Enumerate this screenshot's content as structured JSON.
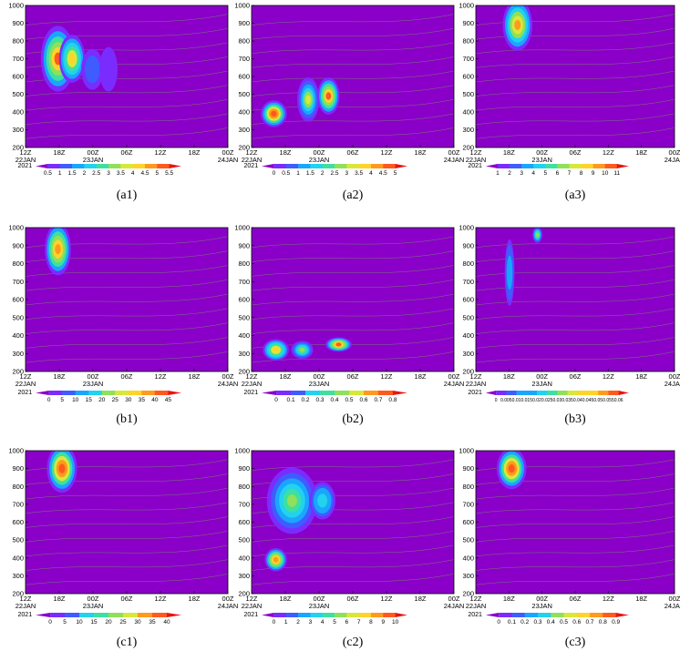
{
  "chart_data": {
    "type": "heatmap",
    "description_colors": {
      "colormap": [
        "#8a00c8",
        "#7a2cff",
        "#3f5cff",
        "#1aa6ff",
        "#22d2ee",
        "#3ee0a0",
        "#8fe05a",
        "#d8e83a",
        "#ffd42a",
        "#ff9a1e",
        "#ff5a1e",
        "#e81414"
      ],
      "contour_line": "#7a7a7a",
      "frame": "#000000"
    },
    "shared_axes": {
      "x_tick_labels_top": [
        "12Z",
        "18Z",
        "00Z",
        "06Z",
        "12Z",
        "18Z",
        "00Z"
      ],
      "x_tick_labels_bottom": [
        "22JAN",
        "",
        "23JAN",
        "",
        "",
        "",
        "24JAN"
      ],
      "y_tick_labels": [
        "200",
        "300",
        "400",
        "500",
        "600",
        "700",
        "800",
        "900",
        "1000"
      ],
      "ylim": [
        1000,
        200
      ],
      "colorbar_year": "2021"
    },
    "panels": [
      {
        "id": "a1",
        "label": "(a1)",
        "colorbar": [
          "0.5",
          "1",
          "1.5",
          "2",
          "2.5",
          "3",
          "3.5",
          "4",
          "4.5",
          "5",
          "5.5"
        ],
        "blobs": [
          {
            "x": 0.16,
            "y": 700,
            "w": 0.08,
            "h": 180,
            "v": 0.9
          },
          {
            "x": 0.23,
            "y": 700,
            "w": 0.06,
            "h": 130,
            "v": 0.75
          },
          {
            "x": 0.33,
            "y": 640,
            "w": 0.05,
            "h": 110,
            "v": 0.2
          },
          {
            "x": 0.41,
            "y": 640,
            "w": 0.04,
            "h": 120,
            "v": 0.1
          }
        ]
      },
      {
        "id": "a2",
        "label": "(a2)",
        "colorbar": [
          "0",
          "0.5",
          "1",
          "1.5",
          "2",
          "2.5",
          "3",
          "3.5",
          "4",
          "4.5",
          "5"
        ],
        "blobs": [
          {
            "x": 0.11,
            "y": 390,
            "w": 0.06,
            "h": 70,
            "v": 0.95
          },
          {
            "x": 0.28,
            "y": 470,
            "w": 0.05,
            "h": 120,
            "v": 0.6
          },
          {
            "x": 0.38,
            "y": 490,
            "w": 0.05,
            "h": 100,
            "v": 0.9
          }
        ]
      },
      {
        "id": "a3",
        "label": "(a3)",
        "colorbar": [
          "1",
          "2",
          "3",
          "4",
          "5",
          "6",
          "7",
          "8",
          "9",
          "10",
          "11"
        ],
        "blobs": [
          {
            "x": 0.21,
            "y": 890,
            "w": 0.07,
            "h": 140,
            "v": 0.8
          }
        ]
      },
      {
        "id": "b1",
        "label": "(b1)",
        "colorbar": [
          "0",
          "5",
          "10",
          "15",
          "20",
          "25",
          "30",
          "35",
          "40",
          "45"
        ],
        "blobs": [
          {
            "x": 0.16,
            "y": 880,
            "w": 0.06,
            "h": 140,
            "v": 0.85
          }
        ]
      },
      {
        "id": "b2",
        "label": "(b2)",
        "colorbar": [
          "0",
          "0.1",
          "0.2",
          "0.3",
          "0.4",
          "0.5",
          "0.6",
          "0.7",
          "0.8"
        ],
        "blobs": [
          {
            "x": 0.12,
            "y": 320,
            "w": 0.06,
            "h": 55,
            "v": 0.75
          },
          {
            "x": 0.25,
            "y": 320,
            "w": 0.05,
            "h": 45,
            "v": 0.5
          },
          {
            "x": 0.43,
            "y": 350,
            "w": 0.06,
            "h": 35,
            "v": 0.9
          }
        ]
      },
      {
        "id": "b3",
        "label": "(b3)",
        "colorbar": [
          "0",
          "0.005",
          "0.01",
          "0.015",
          "0.02",
          "0.025",
          "0.03",
          "0.035",
          "0.04",
          "0.045",
          "0.05",
          "0.055",
          "0.06"
        ],
        "blobs": [
          {
            "x": 0.17,
            "y": 750,
            "w": 0.02,
            "h": 180,
            "v": 0.3
          },
          {
            "x": 0.31,
            "y": 960,
            "w": 0.02,
            "h": 40,
            "v": 0.5
          }
        ]
      },
      {
        "id": "c1",
        "label": "(c1)",
        "colorbar": [
          "0",
          "5",
          "10",
          "15",
          "20",
          "25",
          "30",
          "35",
          "40"
        ],
        "blobs": [
          {
            "x": 0.18,
            "y": 900,
            "w": 0.07,
            "h": 130,
            "v": 0.95
          }
        ]
      },
      {
        "id": "c2",
        "label": "(c2)",
        "colorbar": [
          "0",
          "1",
          "2",
          "3",
          "4",
          "5",
          "6",
          "7",
          "8",
          "9",
          "10"
        ],
        "blobs": [
          {
            "x": 0.12,
            "y": 390,
            "w": 0.05,
            "h": 60,
            "v": 0.85
          },
          {
            "x": 0.2,
            "y": 720,
            "w": 0.12,
            "h": 180,
            "v": 0.5
          },
          {
            "x": 0.35,
            "y": 720,
            "w": 0.06,
            "h": 100,
            "v": 0.4
          }
        ]
      },
      {
        "id": "c3",
        "label": "(c3)",
        "colorbar": [
          "0",
          "0.1",
          "0.2",
          "0.3",
          "0.4",
          "0.5",
          "0.6",
          "0.7",
          "0.8",
          "0.9"
        ],
        "blobs": [
          {
            "x": 0.18,
            "y": 900,
            "w": 0.07,
            "h": 110,
            "v": 0.95
          }
        ]
      }
    ]
  }
}
